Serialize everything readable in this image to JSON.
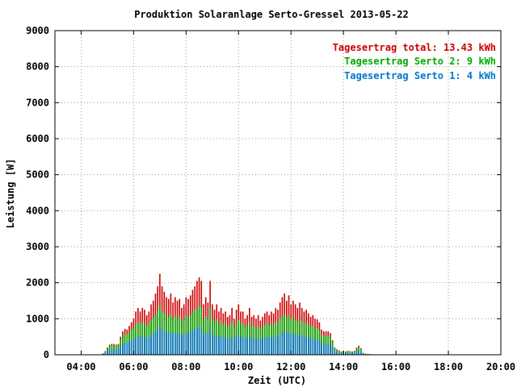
{
  "chart_data": {
    "type": "bar",
    "stacked": true,
    "title": "Produktion Solaranlage Serto-Gressel 2013-05-22",
    "xlabel": "Zeit (UTC)",
    "ylabel": "Leistung [W]",
    "ylim": [
      0,
      9000
    ],
    "y_ticks": [
      0,
      1000,
      2000,
      3000,
      4000,
      5000,
      6000,
      7000,
      8000,
      9000
    ],
    "x_range_hours": [
      3,
      20
    ],
    "x_ticks": [
      {
        "hour": 4,
        "label": "04:00"
      },
      {
        "hour": 6,
        "label": "06:00"
      },
      {
        "hour": 8,
        "label": "08:00"
      },
      {
        "hour": 10,
        "label": "10:00"
      },
      {
        "hour": 12,
        "label": "12:00"
      },
      {
        "hour": 14,
        "label": "14:00"
      },
      {
        "hour": 16,
        "label": "16:00"
      },
      {
        "hour": 18,
        "label": "18:00"
      },
      {
        "hour": 20,
        "label": "20:00"
      }
    ],
    "grid": true,
    "legend_position": "top-right",
    "legend": [
      {
        "text": "Tagesertrag total: 13.43 kWh",
        "color": "#cc0000"
      },
      {
        "text": "Tagesertrag Serto 2: 9 kWh",
        "color": "#00aa00"
      },
      {
        "text": "Tagesertrag Serto 1: 4 kWh",
        "color": "#0077cc"
      }
    ],
    "series_colors": {
      "total": "#cc0000",
      "serto2": "#00aa00",
      "serto1": "#0077cc"
    },
    "interval_minutes": 5,
    "start_time": "04:50",
    "total_w": [
      40,
      100,
      200,
      280,
      300,
      300,
      280,
      300,
      500,
      650,
      720,
      700,
      800,
      900,
      1000,
      1200,
      1300,
      1200,
      1300,
      1250,
      1100,
      1200,
      1400,
      1500,
      1700,
      1900,
      2250,
      1900,
      1750,
      1600,
      1550,
      1700,
      1450,
      1600,
      1500,
      1550,
      1300,
      1400,
      1600,
      1550,
      1650,
      1800,
      1900,
      2050,
      2150,
      2050,
      1400,
      1600,
      1450,
      2050,
      1400,
      1250,
      1400,
      1200,
      1300,
      1150,
      1200,
      1050,
      1100,
      1300,
      1000,
      1250,
      1400,
      1200,
      1200,
      1000,
      1100,
      1300,
      1050,
      1100,
      1000,
      1100,
      950,
      1050,
      1150,
      1200,
      1100,
      1200,
      1150,
      1300,
      1250,
      1450,
      1600,
      1700,
      1500,
      1650,
      1400,
      1500,
      1400,
      1300,
      1450,
      1300,
      1200,
      1250,
      1150,
      1050,
      1100,
      1000,
      980,
      900,
      700,
      650,
      650,
      650,
      600,
      400,
      200,
      150,
      120,
      90,
      100,
      90,
      110,
      100,
      90,
      110,
      200,
      250,
      180,
      50,
      30,
      20,
      20,
      10
    ],
    "serto2_w": [
      35,
      90,
      180,
      250,
      260,
      260,
      250,
      260,
      420,
      520,
      580,
      560,
      620,
      690,
      750,
      850,
      900,
      850,
      900,
      880,
      800,
      860,
      960,
      1020,
      1120,
      1230,
      1380,
      1230,
      1150,
      1080,
      1050,
      1130,
      1000,
      1080,
      1030,
      1060,
      920,
      980,
      1080,
      1050,
      1100,
      1180,
      1240,
      1310,
      1360,
      1310,
      980,
      1080,
      1000,
      1310,
      980,
      900,
      980,
      870,
      920,
      840,
      870,
      780,
      810,
      920,
      750,
      890,
      980,
      870,
      870,
      750,
      810,
      920,
      780,
      810,
      750,
      810,
      720,
      780,
      840,
      870,
      810,
      870,
      840,
      920,
      890,
      1000,
      1080,
      1130,
      1030,
      1100,
      980,
      1030,
      980,
      920,
      1000,
      920,
      870,
      890,
      840,
      780,
      810,
      750,
      740,
      690,
      560,
      530,
      530,
      530,
      500,
      350,
      180,
      130,
      100,
      80,
      90,
      80,
      95,
      90,
      80,
      95,
      170,
      210,
      150,
      45,
      25,
      18,
      18,
      8
    ],
    "serto1_w": [
      20,
      50,
      100,
      140,
      150,
      150,
      140,
      150,
      240,
      300,
      330,
      320,
      360,
      400,
      430,
      490,
      520,
      490,
      520,
      500,
      460,
      490,
      550,
      590,
      640,
      700,
      790,
      700,
      660,
      620,
      600,
      650,
      580,
      620,
      590,
      610,
      530,
      560,
      620,
      600,
      630,
      680,
      710,
      750,
      780,
      750,
      560,
      620,
      570,
      750,
      560,
      520,
      560,
      500,
      530,
      480,
      500,
      450,
      470,
      530,
      430,
      510,
      560,
      500,
      500,
      430,
      470,
      530,
      450,
      470,
      430,
      470,
      410,
      450,
      480,
      500,
      470,
      500,
      480,
      530,
      510,
      570,
      620,
      650,
      590,
      630,
      560,
      590,
      560,
      530,
      570,
      530,
      500,
      510,
      480,
      450,
      470,
      430,
      420,
      400,
      320,
      300,
      300,
      300,
      290,
      200,
      100,
      75,
      60,
      45,
      50,
      45,
      55,
      50,
      45,
      55,
      100,
      120,
      90,
      25,
      15,
      10,
      10,
      5
    ]
  }
}
